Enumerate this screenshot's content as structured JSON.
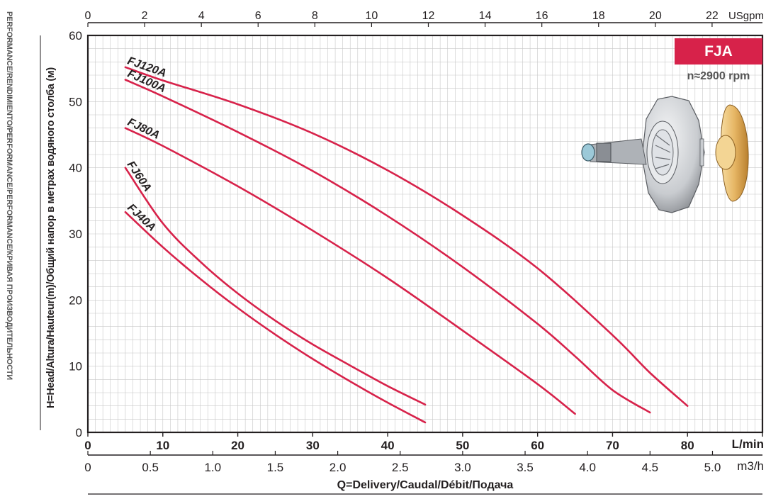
{
  "side_title": "PERFORMANCE/RENDIMIENTO/PERFORMANCE/PERFORMANCE/КРИВАЯ ПРОИЗВОДИТЕЛЬНОСТИ",
  "badge": {
    "label": "FJA",
    "speed": "n≈2900 rpm"
  },
  "colors": {
    "curve": "#d7224a",
    "badge": "#d7224a",
    "grid": "#c8c8c8",
    "axis": "#231f20"
  },
  "illustration": {
    "icon": "pump-impeller-icon"
  },
  "chart_data": {
    "type": "line",
    "title": "",
    "ylabel": "H=Head/Altura/Hauteur(m)/Общий напор в метрах водяного столба (м)",
    "xlabel": "Q=Delivery/Caudal/Débit/Подача",
    "ylim": [
      0,
      60
    ],
    "xlim": [
      0,
      90
    ],
    "grid": true,
    "legend": "none",
    "y_ticks": [
      "0",
      "10",
      "20",
      "30",
      "40",
      "50",
      "60"
    ],
    "x_axes": {
      "lmin": {
        "unit": "L/min",
        "ticks": [
          "0",
          "10",
          "20",
          "30",
          "40",
          "50",
          "60",
          "70",
          "80"
        ]
      },
      "m3h": {
        "unit": "m3/h",
        "ticks": [
          "0",
          "0.5",
          "1.0",
          "1.5",
          "2.0",
          "2.5",
          "3.0",
          "3.5",
          "4.0",
          "4.5",
          "5.0"
        ]
      },
      "usgpm": {
        "unit": "USgpm",
        "ticks": [
          "0",
          "2",
          "4",
          "6",
          "8",
          "10",
          "12",
          "14",
          "16",
          "18",
          "20",
          "22"
        ]
      }
    },
    "series": [
      {
        "name": "FJ120A",
        "x": [
          5,
          10,
          20,
          30,
          40,
          50,
          60,
          70,
          75,
          80
        ],
        "y": [
          55.2,
          53.2,
          49.6,
          45.2,
          39.6,
          32.8,
          24.8,
          14.7,
          9.0,
          4.0
        ]
      },
      {
        "name": "FJ100A",
        "x": [
          5,
          10,
          20,
          30,
          40,
          50,
          60,
          65,
          70,
          75
        ],
        "y": [
          53.3,
          50.8,
          45.4,
          39.5,
          32.7,
          25.0,
          16.4,
          11.5,
          6.4,
          3.0
        ]
      },
      {
        "name": "FJ80A",
        "x": [
          5,
          10,
          20,
          30,
          40,
          50,
          60,
          65
        ],
        "y": [
          46.0,
          43.3,
          37.2,
          30.5,
          23.3,
          15.4,
          7.3,
          2.8
        ]
      },
      {
        "name": "FJ60A",
        "x": [
          5,
          10,
          15,
          20,
          25,
          30,
          35,
          40,
          45
        ],
        "y": [
          40.0,
          31.6,
          25.8,
          21.0,
          16.9,
          13.3,
          10.1,
          7.0,
          4.2
        ]
      },
      {
        "name": "FJ40A",
        "x": [
          5,
          10,
          15,
          20,
          25,
          30,
          35,
          40,
          45
        ],
        "y": [
          33.3,
          28.0,
          23.2,
          18.8,
          14.8,
          11.1,
          7.7,
          4.5,
          1.5
        ]
      }
    ]
  }
}
